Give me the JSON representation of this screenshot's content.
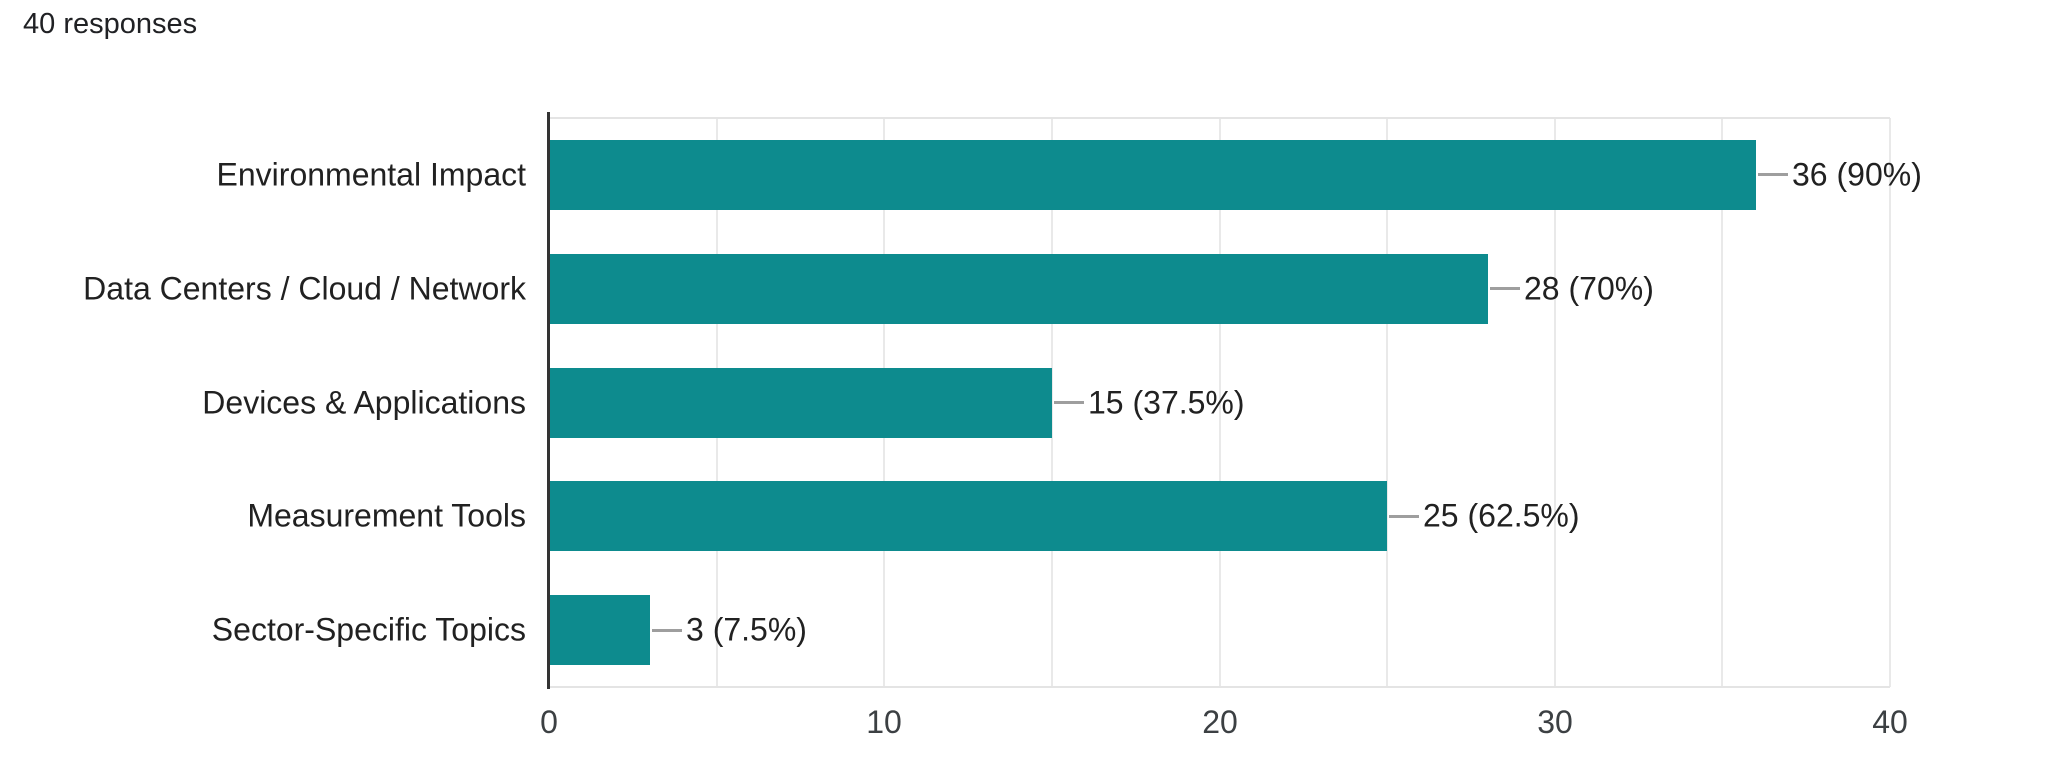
{
  "header": {
    "responses_label": "40 responses"
  },
  "chart_data": {
    "type": "bar",
    "orientation": "horizontal",
    "title": "",
    "xlabel": "",
    "ylabel": "",
    "total_responses": 40,
    "categories": [
      "Environmental Impact",
      "Data Centers / Cloud / Network",
      "Devices & Applications",
      "Measurement Tools",
      "Sector-Specific Topics"
    ],
    "values": [
      36,
      28,
      15,
      25,
      3
    ],
    "percentages": [
      90,
      70,
      37.5,
      62.5,
      7.5
    ],
    "value_labels": [
      "36 (90%)",
      "28 (70%)",
      "15 (37.5%)",
      "25 (62.5%)",
      "3 (7.5%)"
    ],
    "xlim": [
      0,
      40
    ],
    "x_ticks": [
      0,
      10,
      20,
      30,
      40
    ],
    "gridline_step": 5,
    "grid": true,
    "legend": "none",
    "colors": {
      "bar": "#0d8b8e",
      "axis_line": "#333333",
      "gridline": "#e9e9e9",
      "plot_border": "#e4e4e4",
      "connector": "#9e9e9e",
      "label_text": "#212121",
      "tick_text": "#3c4043",
      "responses_text": "#202124"
    }
  }
}
